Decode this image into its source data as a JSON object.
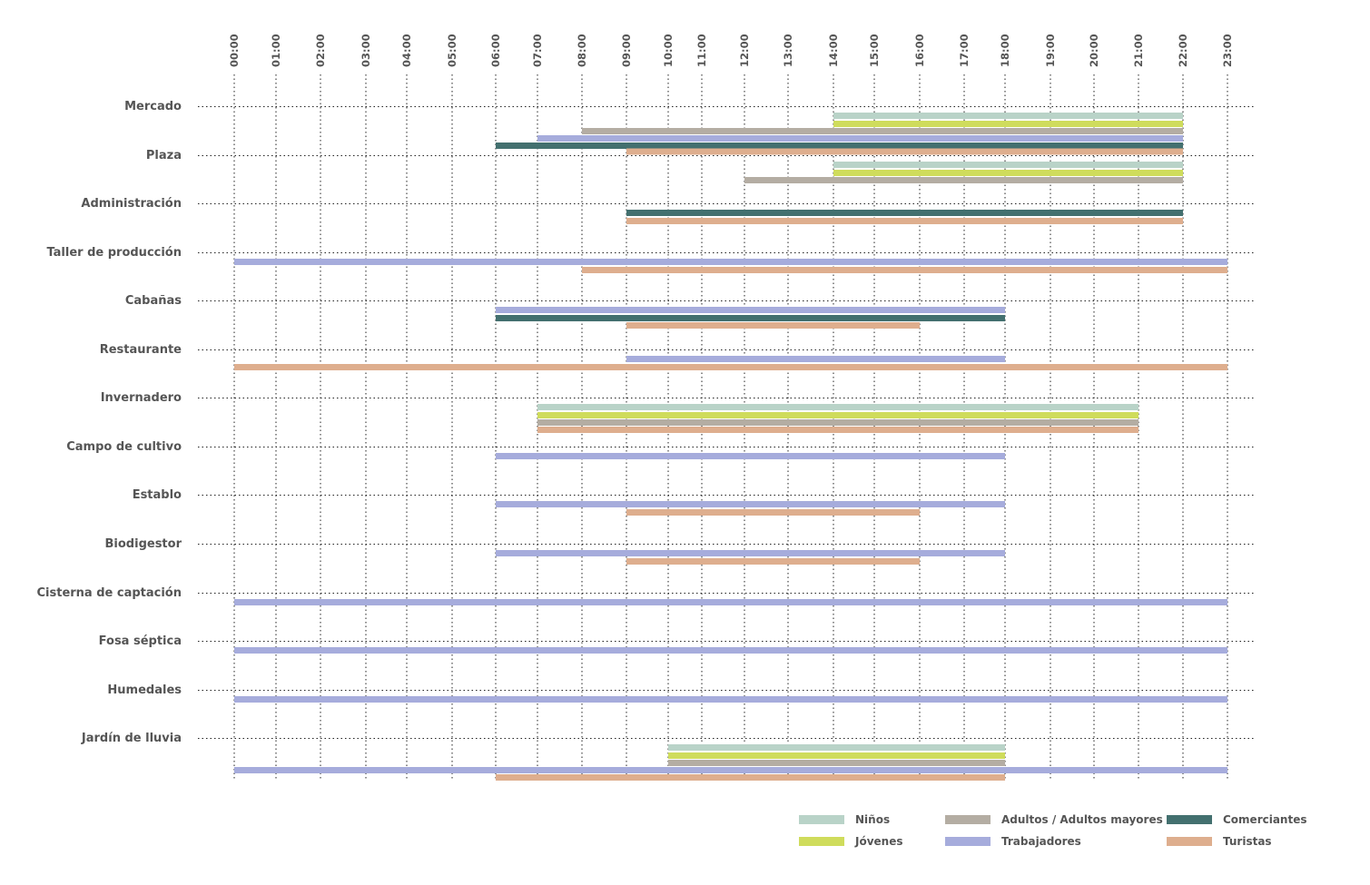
{
  "chart_data": {
    "type": "gantt",
    "x_ticks": [
      "00:00",
      "01:00",
      "02:00",
      "03:00",
      "04:00",
      "05:00",
      "06:00",
      "07:00",
      "08:00",
      "09:00",
      "10:00",
      "11:00",
      "12:00",
      "13:00",
      "14:00",
      "15:00",
      "16:00",
      "17:00",
      "18:00",
      "19:00",
      "20:00",
      "21:00",
      "22:00",
      "23:00"
    ],
    "grid": true,
    "legend_position": "bottom-right",
    "series": [
      {
        "key": "ninos",
        "name": "Niños",
        "color": "#b9d3c8"
      },
      {
        "key": "jovenes",
        "name": "Jóvenes",
        "color": "#cfdc5c"
      },
      {
        "key": "adultos",
        "name": "Adultos / Adultos mayores",
        "color": "#b4ada3"
      },
      {
        "key": "trabajadores",
        "name": "Trabajadores",
        "color": "#a6acdc"
      },
      {
        "key": "comerciantes",
        "name": "Comerciantes",
        "color": "#43706f"
      },
      {
        "key": "turistas",
        "name": "Turistas",
        "color": "#deae8e"
      }
    ],
    "rows": [
      {
        "label": "Mercado",
        "bars": [
          {
            "series": "ninos",
            "start": "14:00",
            "end": "22:00"
          },
          {
            "series": "jovenes",
            "start": "14:00",
            "end": "22:00"
          },
          {
            "series": "adultos",
            "start": "08:00",
            "end": "22:00"
          },
          {
            "series": "trabajadores",
            "start": "07:00",
            "end": "22:00"
          },
          {
            "series": "comerciantes",
            "start": "06:00",
            "end": "22:00"
          },
          {
            "series": "turistas",
            "start": "09:00",
            "end": "22:00"
          }
        ]
      },
      {
        "label": "Plaza",
        "bars": [
          {
            "series": "ninos",
            "start": "14:00",
            "end": "22:00"
          },
          {
            "series": "jovenes",
            "start": "14:00",
            "end": "22:00"
          },
          {
            "series": "adultos",
            "start": "12:00",
            "end": "22:00"
          }
        ]
      },
      {
        "label": "Administración",
        "bars": [
          {
            "series": "comerciantes",
            "start": "09:00",
            "end": "22:00"
          },
          {
            "series": "turistas",
            "start": "09:00",
            "end": "22:00"
          }
        ]
      },
      {
        "label": "Taller de producción",
        "bars": [
          {
            "series": "trabajadores",
            "start": "00:00",
            "end": "23:00"
          },
          {
            "series": "turistas",
            "start": "08:00",
            "end": "23:00"
          }
        ]
      },
      {
        "label": "Cabañas",
        "bars": [
          {
            "series": "trabajadores",
            "start": "06:00",
            "end": "18:00"
          },
          {
            "series": "comerciantes",
            "start": "06:00",
            "end": "18:00"
          },
          {
            "series": "turistas",
            "start": "09:00",
            "end": "16:00"
          }
        ]
      },
      {
        "label": "Restaurante",
        "bars": [
          {
            "series": "trabajadores",
            "start": "09:00",
            "end": "18:00"
          },
          {
            "series": "turistas",
            "start": "00:00",
            "end": "23:00"
          }
        ]
      },
      {
        "label": "Invernadero",
        "bars": [
          {
            "series": "ninos",
            "start": "07:00",
            "end": "21:00"
          },
          {
            "series": "jovenes",
            "start": "07:00",
            "end": "21:00"
          },
          {
            "series": "adultos",
            "start": "07:00",
            "end": "21:00"
          },
          {
            "series": "turistas",
            "start": "07:00",
            "end": "21:00"
          }
        ]
      },
      {
        "label": "Campo de cultivo",
        "bars": [
          {
            "series": "trabajadores",
            "start": "06:00",
            "end": "18:00"
          }
        ]
      },
      {
        "label": "Establo",
        "bars": [
          {
            "series": "trabajadores",
            "start": "06:00",
            "end": "18:00"
          },
          {
            "series": "turistas",
            "start": "09:00",
            "end": "16:00"
          }
        ]
      },
      {
        "label": "Biodigestor",
        "bars": [
          {
            "series": "trabajadores",
            "start": "06:00",
            "end": "18:00"
          },
          {
            "series": "turistas",
            "start": "09:00",
            "end": "16:00"
          }
        ]
      },
      {
        "label": "Cisterna de captación",
        "bars": [
          {
            "series": "trabajadores",
            "start": "00:00",
            "end": "23:00"
          }
        ]
      },
      {
        "label": "Fosa séptica",
        "bars": [
          {
            "series": "trabajadores",
            "start": "00:00",
            "end": "23:00"
          }
        ]
      },
      {
        "label": "Humedales",
        "bars": [
          {
            "series": "trabajadores",
            "start": "00:00",
            "end": "23:00"
          }
        ]
      },
      {
        "label": "Jardín de lluvia",
        "bars": [
          {
            "series": "ninos",
            "start": "10:00",
            "end": "18:00"
          },
          {
            "series": "jovenes",
            "start": "10:00",
            "end": "18:00"
          },
          {
            "series": "adultos",
            "start": "10:00",
            "end": "18:00"
          },
          {
            "series": "trabajadores",
            "start": "00:00",
            "end": "23:00"
          },
          {
            "series": "turistas",
            "start": "06:00",
            "end": "18:00"
          }
        ]
      }
    ]
  }
}
